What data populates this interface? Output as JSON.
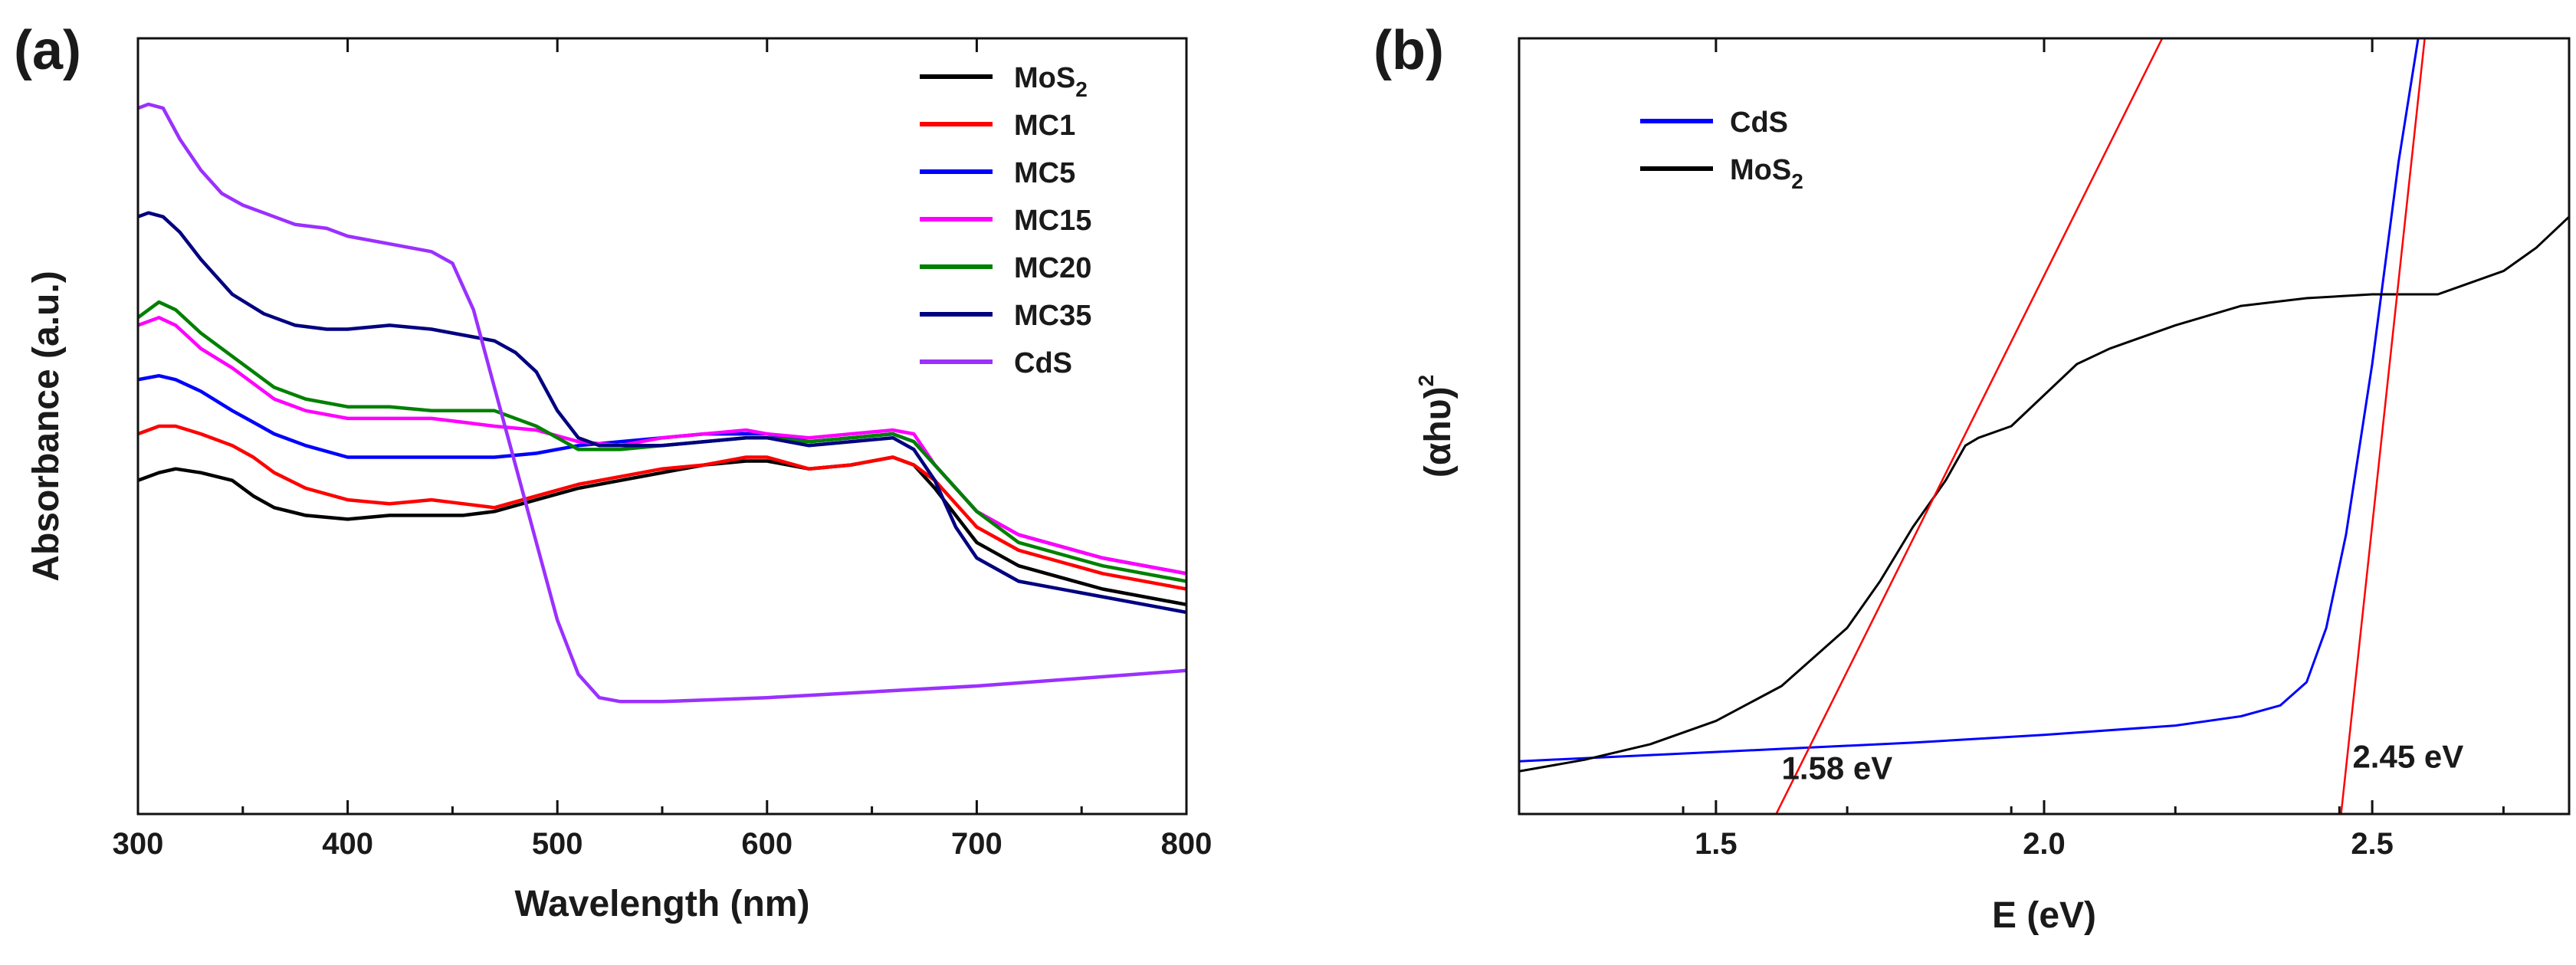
{
  "chart_data": [
    {
      "panel": "(a)",
      "type": "line",
      "xlabel": "Wavelength (nm)",
      "ylabel": "Absorbance (a.u.)",
      "xlim": [
        300,
        800
      ],
      "ylim": [
        0,
        1
      ],
      "xticks": [
        300,
        400,
        500,
        600,
        700,
        800
      ],
      "xtick_labels": [
        "300",
        "400",
        "500",
        "600",
        "700",
        "800"
      ],
      "yticks_shown": false,
      "legend_position": "top-right",
      "series": [
        {
          "key": "mos2",
          "name": "MoS",
          "name_sub": "2",
          "color": "#000000",
          "x": [
            300,
            310,
            318,
            330,
            345,
            355,
            365,
            380,
            400,
            420,
            440,
            455,
            470,
            490,
            510,
            530,
            550,
            570,
            590,
            600,
            620,
            640,
            660,
            670,
            680,
            700,
            720,
            760,
            800
          ],
          "y": [
            0.43,
            0.44,
            0.445,
            0.44,
            0.43,
            0.41,
            0.395,
            0.385,
            0.38,
            0.385,
            0.385,
            0.385,
            0.39,
            0.405,
            0.42,
            0.43,
            0.44,
            0.45,
            0.455,
            0.455,
            0.445,
            0.45,
            0.46,
            0.45,
            0.42,
            0.35,
            0.32,
            0.29,
            0.27
          ]
        },
        {
          "key": "mc1",
          "name": "MC1",
          "color": "#ff0000",
          "x": [
            300,
            310,
            318,
            330,
            345,
            355,
            365,
            380,
            400,
            420,
            440,
            455,
            470,
            490,
            510,
            530,
            550,
            570,
            590,
            600,
            620,
            640,
            660,
            670,
            680,
            700,
            720,
            760,
            800
          ],
          "y": [
            0.49,
            0.5,
            0.5,
            0.49,
            0.475,
            0.46,
            0.44,
            0.42,
            0.405,
            0.4,
            0.405,
            0.4,
            0.395,
            0.41,
            0.425,
            0.435,
            0.445,
            0.45,
            0.46,
            0.46,
            0.445,
            0.45,
            0.46,
            0.45,
            0.43,
            0.37,
            0.34,
            0.31,
            0.29
          ]
        },
        {
          "key": "mc5",
          "name": "MC5",
          "color": "#0000ff",
          "x": [
            300,
            310,
            318,
            330,
            345,
            355,
            365,
            380,
            400,
            420,
            440,
            455,
            470,
            490,
            510,
            530,
            550,
            570,
            590,
            600,
            620,
            640,
            660,
            670,
            680,
            700,
            720,
            760,
            800
          ],
          "y": [
            0.56,
            0.565,
            0.56,
            0.545,
            0.52,
            0.505,
            0.49,
            0.475,
            0.46,
            0.46,
            0.46,
            0.46,
            0.46,
            0.465,
            0.475,
            0.48,
            0.485,
            0.49,
            0.49,
            0.49,
            0.48,
            0.485,
            0.49,
            0.48,
            0.45,
            0.39,
            0.36,
            0.33,
            0.31
          ]
        },
        {
          "key": "mc15",
          "name": "MC15",
          "color": "#ff00ff",
          "x": [
            300,
            310,
            318,
            330,
            345,
            355,
            365,
            380,
            400,
            420,
            440,
            455,
            470,
            490,
            510,
            530,
            550,
            570,
            590,
            600,
            620,
            640,
            660,
            670,
            680,
            700,
            720,
            760,
            800
          ],
          "y": [
            0.63,
            0.64,
            0.63,
            0.6,
            0.575,
            0.555,
            0.535,
            0.52,
            0.51,
            0.51,
            0.51,
            0.505,
            0.5,
            0.495,
            0.48,
            0.475,
            0.485,
            0.49,
            0.495,
            0.49,
            0.485,
            0.49,
            0.495,
            0.49,
            0.45,
            0.39,
            0.36,
            0.33,
            0.31
          ]
        },
        {
          "key": "mc20",
          "name": "MC20",
          "color": "#008000",
          "x": [
            300,
            310,
            318,
            330,
            345,
            355,
            365,
            380,
            400,
            420,
            440,
            455,
            470,
            490,
            510,
            530,
            550,
            570,
            590,
            600,
            620,
            640,
            660,
            670,
            680,
            700,
            720,
            760,
            800
          ],
          "y": [
            0.64,
            0.66,
            0.65,
            0.62,
            0.59,
            0.57,
            0.55,
            0.535,
            0.525,
            0.525,
            0.52,
            0.52,
            0.52,
            0.5,
            0.47,
            0.47,
            0.475,
            0.48,
            0.485,
            0.485,
            0.48,
            0.485,
            0.49,
            0.48,
            0.45,
            0.39,
            0.35,
            0.32,
            0.3
          ]
        },
        {
          "key": "mc35",
          "name": "MC35",
          "color": "#000080",
          "x": [
            300,
            305,
            312,
            320,
            330,
            345,
            360,
            375,
            390,
            400,
            420,
            440,
            460,
            470,
            480,
            490,
            500,
            510,
            520,
            530,
            550,
            570,
            590,
            600,
            620,
            640,
            660,
            670,
            680,
            690,
            700,
            720,
            760,
            800
          ],
          "y": [
            0.77,
            0.775,
            0.77,
            0.75,
            0.715,
            0.67,
            0.645,
            0.63,
            0.625,
            0.625,
            0.63,
            0.625,
            0.615,
            0.61,
            0.595,
            0.57,
            0.52,
            0.485,
            0.475,
            0.475,
            0.475,
            0.48,
            0.485,
            0.485,
            0.475,
            0.48,
            0.485,
            0.47,
            0.43,
            0.37,
            0.33,
            0.3,
            0.28,
            0.26
          ]
        },
        {
          "key": "cds",
          "name": "CdS",
          "color": "#9b30ff",
          "x": [
            300,
            305,
            312,
            320,
            330,
            340,
            350,
            360,
            375,
            390,
            400,
            420,
            440,
            450,
            460,
            470,
            480,
            490,
            500,
            510,
            520,
            530,
            550,
            600,
            700,
            800
          ],
          "y": [
            0.91,
            0.915,
            0.91,
            0.87,
            0.83,
            0.8,
            0.785,
            0.775,
            0.76,
            0.755,
            0.745,
            0.735,
            0.725,
            0.71,
            0.65,
            0.55,
            0.45,
            0.35,
            0.25,
            0.18,
            0.15,
            0.145,
            0.145,
            0.15,
            0.165,
            0.185
          ]
        }
      ]
    },
    {
      "panel": "(b)",
      "type": "line",
      "xlabel": "E (eV)",
      "ylabel": "(αhυ)",
      "ylabel_sup": "2",
      "xlim": [
        1.2,
        2.8
      ],
      "ylim": [
        0,
        1
      ],
      "xticks": [
        1.5,
        2.0,
        2.5
      ],
      "xtick_labels": [
        "1.5",
        "2.0",
        "2.5"
      ],
      "yticks_shown": false,
      "legend_position": "top-left",
      "series": [
        {
          "key": "cds",
          "name": "CdS",
          "color": "#0000ff",
          "x": [
            1.2,
            1.4,
            1.6,
            1.8,
            2.0,
            2.2,
            2.3,
            2.36,
            2.4,
            2.43,
            2.46,
            2.5,
            2.54,
            2.57
          ],
          "y": [
            0.068,
            0.076,
            0.084,
            0.092,
            0.102,
            0.114,
            0.126,
            0.14,
            0.17,
            0.24,
            0.36,
            0.58,
            0.84,
            1.0
          ]
        },
        {
          "key": "mos2",
          "name": "MoS",
          "name_sub": "2",
          "color": "#000000",
          "x": [
            1.2,
            1.3,
            1.4,
            1.5,
            1.6,
            1.7,
            1.75,
            1.8,
            1.85,
            1.88,
            1.9,
            1.95,
            2.0,
            2.05,
            2.1,
            2.2,
            2.3,
            2.4,
            2.5,
            2.6,
            2.7,
            2.75,
            2.8
          ],
          "y": [
            0.055,
            0.07,
            0.09,
            0.12,
            0.165,
            0.24,
            0.3,
            0.37,
            0.43,
            0.475,
            0.485,
            0.5,
            0.54,
            0.58,
            0.6,
            0.63,
            0.655,
            0.665,
            0.67,
            0.67,
            0.7,
            0.73,
            0.77
          ]
        }
      ],
      "fit_lines": [
        {
          "key": "fit-mos2",
          "color": "#ff0000",
          "x": [
            1.58,
            2.18
          ],
          "y": [
            -0.02,
            1.0
          ],
          "label": "1.58 eV",
          "label_x": 1.6,
          "label_y": 0.045
        },
        {
          "key": "fit-cds",
          "color": "#ff0000",
          "x": [
            2.45,
            2.58
          ],
          "y": [
            -0.02,
            1.0
          ],
          "label": "2.45 eV",
          "label_x": 2.47,
          "label_y": 0.06
        }
      ]
    }
  ]
}
